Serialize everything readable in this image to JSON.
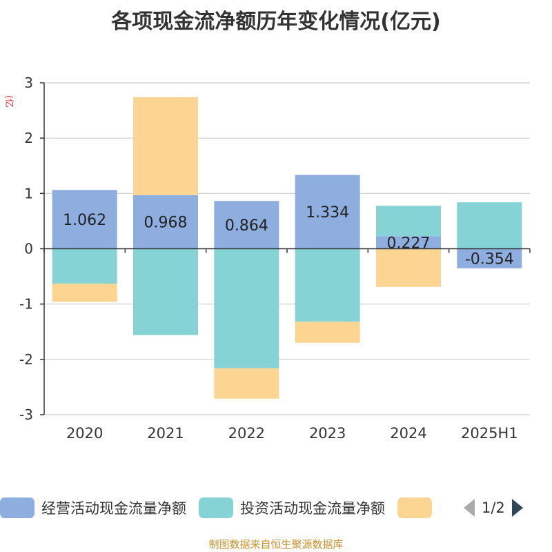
{
  "title": "各项现金流净额历年变化情况(亿元)",
  "unit_label": "(亿元)",
  "source": "制图数据来自恒生聚源数据库",
  "legend": {
    "page_text": "1/2"
  },
  "colors": {
    "operating": "#8eaedf",
    "investing": "#86d3d5",
    "financing": "#fdd592",
    "axis": "#333333",
    "grid": "#cccccc"
  },
  "chart_data": {
    "type": "bar",
    "stacked": true,
    "title": "各项现金流净额历年变化情况(亿元)",
    "ylabel": "(亿元)",
    "xlabel": "",
    "categories": [
      "2020",
      "2021",
      "2022",
      "2023",
      "2024",
      "2025H1"
    ],
    "ylim": [
      -3,
      3
    ],
    "yticks": [
      3,
      2,
      1,
      0,
      -1,
      -2,
      -3
    ],
    "grid": true,
    "legend_position": "bottom",
    "series": [
      {
        "name": "经营活动现金流量净额",
        "color": "#8eaedf",
        "values": [
          1.062,
          0.968,
          0.864,
          1.334,
          0.227,
          -0.354
        ],
        "labels": [
          "1.062",
          "0.968",
          "0.864",
          "1.334",
          "0.227",
          "-0.354"
        ]
      },
      {
        "name": "投资活动现金流量净额",
        "color": "#86d3d5",
        "values": [
          -0.63,
          -1.56,
          -2.16,
          -1.32,
          0.55,
          0.84
        ]
      },
      {
        "name": "",
        "color": "#fdd592",
        "values": [
          -0.33,
          1.77,
          -0.55,
          -0.38,
          -0.69,
          0.0
        ]
      }
    ]
  }
}
